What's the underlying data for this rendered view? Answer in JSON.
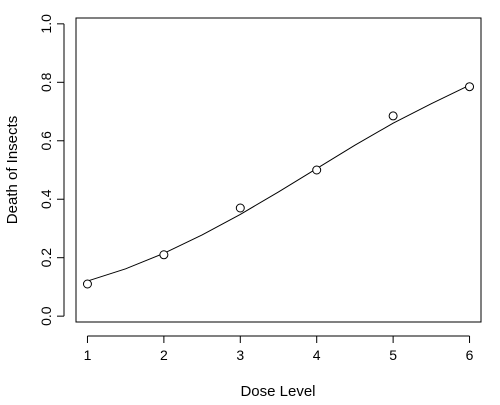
{
  "chart_data": {
    "type": "scatter",
    "title": "",
    "xlabel": "Dose Level",
    "ylabel": "Death of Insects",
    "xlim": [
      0.85,
      6.15
    ],
    "ylim": [
      -0.02,
      1.02
    ],
    "xticks": [
      1,
      2,
      3,
      4,
      5,
      6
    ],
    "xtick_labels": [
      "1",
      "2",
      "3",
      "4",
      "5",
      "6"
    ],
    "yticks": [
      0.0,
      0.2,
      0.4,
      0.6,
      0.8,
      1.0
    ],
    "ytick_labels": [
      "0.0",
      "0.2",
      "0.4",
      "0.6",
      "0.8",
      "1.0"
    ],
    "grid": false,
    "legend": "none",
    "series": [
      {
        "type": "scatter",
        "marker": "open-circle",
        "x": [
          1,
          2,
          3,
          4,
          5,
          6
        ],
        "y": [
          0.11,
          0.21,
          0.37,
          0.5,
          0.685,
          0.785
        ]
      },
      {
        "type": "line",
        "style": "fitted-curve",
        "x": [
          1.0,
          1.5,
          2.0,
          2.5,
          3.0,
          3.5,
          4.0,
          4.5,
          5.0,
          5.5,
          6.0
        ],
        "y": [
          0.12,
          0.162,
          0.215,
          0.278,
          0.348,
          0.425,
          0.505,
          0.585,
          0.66,
          0.727,
          0.79
        ]
      }
    ],
    "colors": {
      "points": "#000000",
      "curve": "#000000",
      "axes": "#000000"
    }
  }
}
